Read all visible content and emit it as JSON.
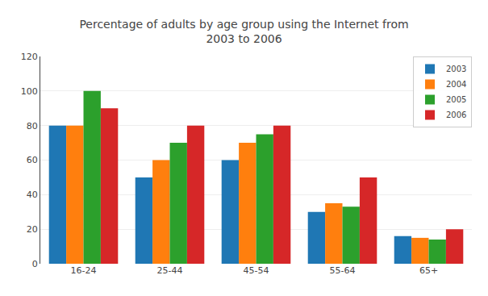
{
  "chart_data": {
    "type": "bar",
    "title": "Percentage of adults by age group using the Internet from\n2003 to 2006",
    "categories": [
      "16-24",
      "25-44",
      "45-54",
      "55-64",
      "65+"
    ],
    "series": [
      {
        "name": "2003",
        "values": [
          80,
          50,
          60,
          30,
          16
        ]
      },
      {
        "name": "2004",
        "values": [
          80,
          60,
          70,
          35,
          15
        ]
      },
      {
        "name": "2005",
        "values": [
          100,
          70,
          75,
          33,
          14
        ]
      },
      {
        "name": "2006",
        "values": [
          90,
          80,
          80,
          50,
          20
        ]
      }
    ],
    "ylim": [
      0,
      120
    ],
    "yticks": [
      0,
      20,
      40,
      60,
      80,
      100,
      120
    ],
    "grid": true,
    "legend": "upper right"
  }
}
